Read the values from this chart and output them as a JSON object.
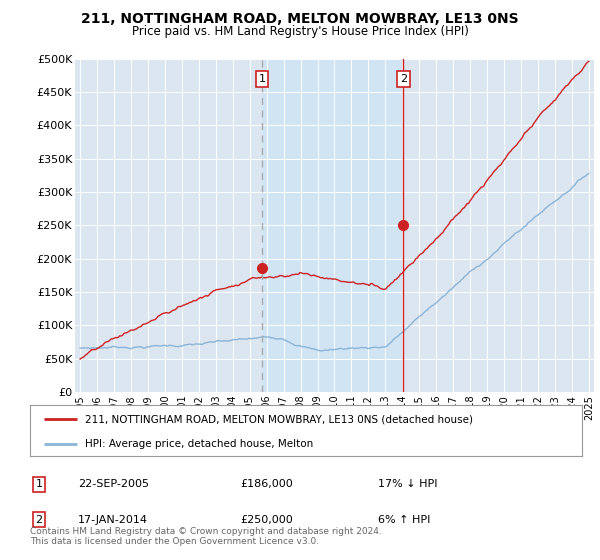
{
  "title": "211, NOTTINGHAM ROAD, MELTON MOWBRAY, LE13 0NS",
  "subtitle": "Price paid vs. HM Land Registry's House Price Index (HPI)",
  "ylim": [
    0,
    500000
  ],
  "yticks": [
    0,
    50000,
    100000,
    150000,
    200000,
    250000,
    300000,
    350000,
    400000,
    450000,
    500000
  ],
  "ytick_labels": [
    "£0",
    "£50K",
    "£100K",
    "£150K",
    "£200K",
    "£250K",
    "£300K",
    "£350K",
    "£400K",
    "£450K",
    "£500K"
  ],
  "hpi_color": "#8ab4d8",
  "price_color": "#cc2222",
  "sale1_x": 2005.73,
  "sale1_y": 186000,
  "sale1_label": "1",
  "sale2_x": 2014.05,
  "sale2_y": 250000,
  "sale2_label": "2",
  "vline1_color": "#aaaaaa",
  "vline2_color": "#cc2222",
  "shade_color": "#d0e4f5",
  "legend_price_label": "211, NOTTINGHAM ROAD, MELTON MOWBRAY, LE13 0NS (detached house)",
  "legend_hpi_label": "HPI: Average price, detached house, Melton",
  "annotation1_date": "22-SEP-2005",
  "annotation1_price": "£186,000",
  "annotation1_hpi": "17% ↓ HPI",
  "annotation2_date": "17-JAN-2014",
  "annotation2_price": "£250,000",
  "annotation2_hpi": "6% ↑ HPI",
  "footer": "Contains HM Land Registry data © Crown copyright and database right 2024.\nThis data is licensed under the Open Government Licence v3.0.",
  "xlim_left": 1994.7,
  "xlim_right": 2025.3,
  "figwidth": 6.0,
  "figheight": 5.6,
  "dpi": 100
}
